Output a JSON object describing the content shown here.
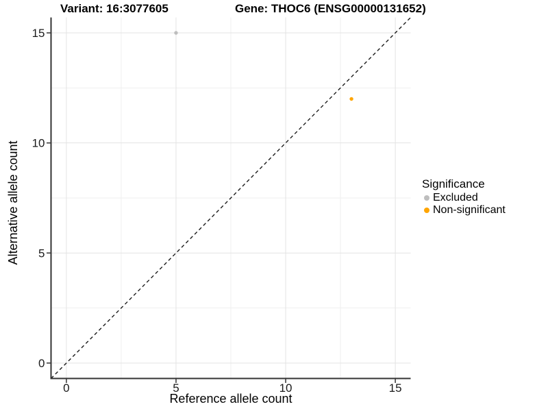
{
  "chart_data": {
    "type": "scatter",
    "title_left": "Variant: 16:3077605",
    "title_right": "Gene: THOC6 (ENSG00000131652)",
    "xlabel": "Reference allele count",
    "ylabel": "Alternative allele count",
    "xlim": [
      -0.7,
      15.7
    ],
    "ylim": [
      -0.7,
      15.7
    ],
    "xticks": [
      0,
      5,
      10,
      15
    ],
    "yticks": [
      0,
      5,
      10,
      15
    ],
    "x_minor_ticks": [
      2.5,
      7.5,
      12.5
    ],
    "y_minor_ticks": [
      2.5,
      7.5,
      12.5
    ],
    "grid": "major+minor",
    "reference_line": {
      "equation": "y = x",
      "style": "dashed",
      "color": "#1a1a1a"
    },
    "series": [
      {
        "name": "Excluded",
        "color": "#bebebe",
        "points": [
          {
            "x": 5,
            "y": 15
          }
        ]
      },
      {
        "name": "Non-significant",
        "color": "#ffa500",
        "points": [
          {
            "x": 13,
            "y": 12
          }
        ]
      }
    ],
    "legend": {
      "title": "Significance",
      "position": "right"
    },
    "colors": {
      "axis_line": "#333333",
      "grid_major": "#e3e3e3",
      "grid_minor": "#efefef"
    }
  }
}
